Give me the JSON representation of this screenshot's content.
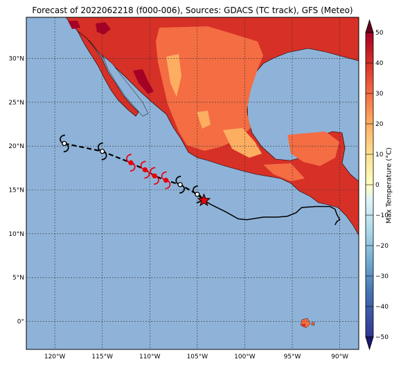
{
  "title": "Forecast of 2022062218 (f000-006), Sources: GDACS (TC track), GFS (Meteo)",
  "axes": {
    "lon_ticks": [
      "120°W",
      "115°W",
      "110°W",
      "105°W",
      "100°W",
      "95°W",
      "90°W"
    ],
    "lon_values": [
      -120,
      -115,
      -110,
      -105,
      -100,
      -95,
      -90
    ],
    "lat_ticks": [
      "30°N",
      "25°N",
      "20°N",
      "15°N",
      "10°N",
      "5°N",
      "0°"
    ],
    "lat_values": [
      30,
      25,
      20,
      15,
      10,
      5,
      0
    ],
    "lon_range": [
      -123,
      -88
    ],
    "lat_range": [
      -3.2,
      34.7
    ]
  },
  "colorbar": {
    "label": "Max Temperature (°C)",
    "ticks": [
      "50",
      "40",
      "30",
      "20",
      "10",
      "0",
      "−10",
      "−20",
      "−30",
      "−40",
      "−50"
    ],
    "values": [
      50,
      40,
      30,
      20,
      10,
      0,
      -10,
      -20,
      -30,
      -40,
      -50
    ],
    "colors": {
      "ocean": "#8fb3d8",
      "band_20_30": "#f46d43",
      "band_30_40": "#d73027",
      "band_40_50": "#a50026",
      "band_10_20": "#fdae61"
    }
  },
  "track": {
    "past_path_note_lonlat": [
      [
        -104.3,
        13.8
      ],
      [
        -103.5,
        13.3
      ],
      [
        -102,
        12.5
      ],
      [
        -100.7,
        11.7
      ],
      [
        -99.8,
        11.6
      ],
      [
        -98,
        11.9
      ],
      [
        -96.5,
        11.9
      ],
      [
        -95.5,
        12
      ],
      [
        -94.6,
        12.4
      ],
      [
        -94,
        13
      ],
      [
        -92.5,
        13.1
      ],
      [
        -91,
        13.1
      ],
      [
        -90.5,
        12.8
      ],
      [
        -90.3,
        12.2
      ],
      [
        -90,
        11.6
      ],
      [
        -90.3,
        11.4
      ],
      [
        -90.5,
        11
      ]
    ],
    "forecast_points": [
      {
        "lon": -119,
        "lat": 20.3,
        "color": "black"
      },
      {
        "lon": -115,
        "lat": 19.4,
        "color": "black"
      },
      {
        "lon": -112,
        "lat": 18.1,
        "color": "red"
      },
      {
        "lon": -110.5,
        "lat": 17.3,
        "color": "red"
      },
      {
        "lon": -109.5,
        "lat": 16.6,
        "color": "red"
      },
      {
        "lon": -108.3,
        "lat": 16.1,
        "color": "red"
      },
      {
        "lon": -106.8,
        "lat": 15.6,
        "color": "black"
      },
      {
        "lon": -105,
        "lat": 14.5,
        "color": "black"
      }
    ],
    "current_position": {
      "lon": -104.3,
      "lat": 13.8
    }
  }
}
